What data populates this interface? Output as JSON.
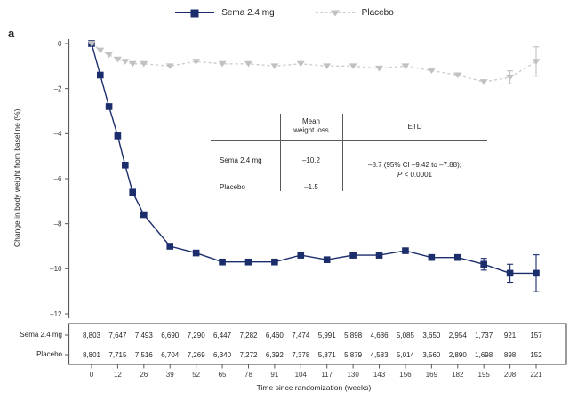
{
  "panel_label": "a",
  "legend": [
    {
      "label": "Sema 2.4 mg",
      "marker": "square-icon",
      "line": "solid",
      "color": "#1c2d6b"
    },
    {
      "label": "Placebo",
      "marker": "triangle-down-icon",
      "line": "dashed",
      "color": "#bfc1c3"
    }
  ],
  "chart_data": {
    "type": "line",
    "xlabel": "Time since randomization (weeks)",
    "ylabel": "Change in body weight from baseline (%)",
    "x_ticks": [
      0,
      12,
      26,
      39,
      52,
      65,
      78,
      91,
      104,
      117,
      130,
      143,
      156,
      169,
      182,
      195,
      208,
      221
    ],
    "y_ticks": [
      0,
      -2,
      -4,
      -6,
      -8,
      -10,
      -12
    ],
    "ylim": [
      -12.5,
      0.5
    ],
    "grid": false,
    "legend_position": "top-center",
    "series": [
      {
        "name": "Sema 2.4 mg",
        "color": "#1c2d6b",
        "marker": "square",
        "line_style": "solid",
        "x": [
          0,
          4,
          8,
          12,
          16,
          20,
          26,
          39,
          52,
          65,
          78,
          91,
          104,
          117,
          130,
          143,
          156,
          169,
          182,
          195,
          208,
          221
        ],
        "y": [
          0,
          -1.4,
          -2.8,
          -4.1,
          -5.4,
          -6.6,
          -7.6,
          -9.0,
          -9.3,
          -9.7,
          -9.7,
          -9.7,
          -9.4,
          -9.6,
          -9.4,
          -9.4,
          -9.2,
          -9.5,
          -9.5,
          -9.8,
          -10.2,
          -10.2
        ],
        "error_bars": {
          "195": 0.26,
          "208": 0.4,
          "221": 0.82
        }
      },
      {
        "name": "Placebo",
        "color": "#cbcdcf",
        "marker_color": "#bfc1c3",
        "marker": "triangle-down",
        "line_style": "dashed",
        "x": [
          0,
          4,
          8,
          12,
          16,
          20,
          26,
          39,
          52,
          65,
          78,
          91,
          104,
          117,
          130,
          143,
          156,
          169,
          182,
          195,
          208,
          221
        ],
        "y": [
          0,
          -0.3,
          -0.5,
          -0.7,
          -0.8,
          -0.9,
          -0.9,
          -1.0,
          -0.8,
          -0.9,
          -0.9,
          -1.0,
          -0.9,
          -1.0,
          -1.0,
          -1.1,
          -1.0,
          -1.2,
          -1.4,
          -1.7,
          -1.5,
          -0.8
        ],
        "error_bars": {
          "208": 0.29,
          "221": 0.65
        }
      }
    ]
  },
  "inset_table": {
    "col2_header_line1": "Mean",
    "col2_header_line2": "weight loss",
    "col3_header": "ETD",
    "rows": [
      {
        "label": "Sema 2.4 mg",
        "mean": "–10.2"
      },
      {
        "label": "Placebo",
        "mean": "–1.5"
      }
    ],
    "etd_line1": "–8.7 (95% CI –9.42 to –7.88);",
    "etd_p": "P",
    "etd_p_rest": " < 0.0001"
  },
  "counts_table": {
    "row_labels": [
      "Sema 2.4 mg",
      "Placebo"
    ],
    "sema": [
      "8,803",
      "7,647",
      "7,493",
      "6,690",
      "7,290",
      "6,447",
      "7,282",
      "6,460",
      "7,474",
      "5,991",
      "5,898",
      "4,686",
      "5,085",
      "3,650",
      "2,954",
      "1,737",
      "921",
      "157"
    ],
    "placebo": [
      "8,801",
      "7,715",
      "7,516",
      "6,704",
      "7,269",
      "6,340",
      "7,272",
      "6,392",
      "7,378",
      "5,871",
      "5,879",
      "4,583",
      "5,014",
      "3,560",
      "2,890",
      "1,698",
      "898",
      "152"
    ]
  }
}
